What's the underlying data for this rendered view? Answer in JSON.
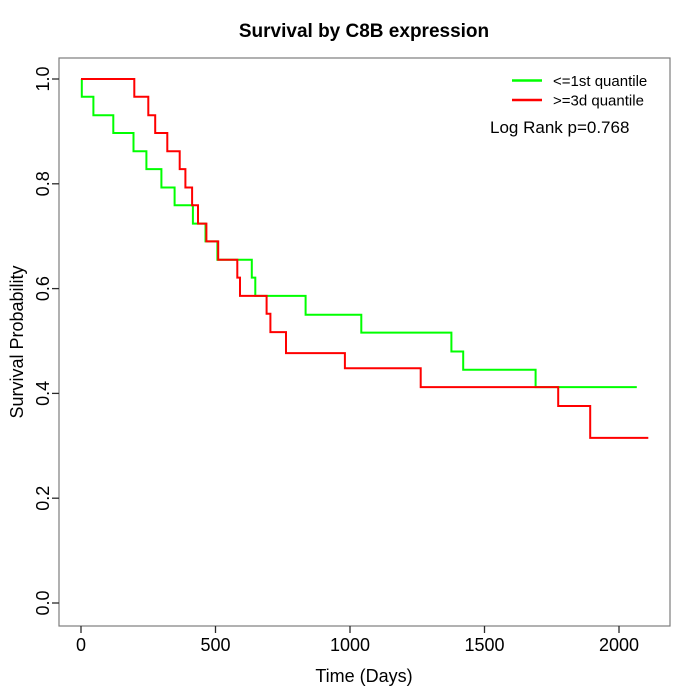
{
  "figure": {
    "title": "Survival by C8B expression",
    "xlabel": "Time (Days)",
    "ylabel": "Survival Probability",
    "annotation": "Log Rank p=0.768"
  },
  "legend": {
    "position": "top-right",
    "items": [
      {
        "label": "<=1st quantile",
        "color": "#00ff00"
      },
      {
        "label": ">=3d quantile",
        "color": "#ff0000"
      }
    ]
  },
  "colors": {
    "background": "#ffffff",
    "axis_box": "#7d7d7d",
    "tick": "#2a2a2a",
    "text": "#000000",
    "green_curve": "#00ff00",
    "red_curve": "#ff0000"
  },
  "chart_data": {
    "type": "line",
    "subtype": "kaplan-meier-step",
    "title": "Survival by C8B expression",
    "xlabel": "Time (Days)",
    "ylabel": "Survival Probability",
    "xticks": [
      0,
      500,
      1000,
      1500,
      2000
    ],
    "yticks": [
      0.0,
      0.2,
      0.4,
      0.6,
      0.8,
      1.0
    ],
    "xlim": [
      -82,
      2190
    ],
    "ylim": [
      -0.046,
      1.041
    ],
    "grid": false,
    "legend_position": "top-right",
    "annotations": [
      "Log Rank p=0.768"
    ],
    "series": [
      {
        "name": "<=1st quantile",
        "color": "#00ff00",
        "points": [
          [
            0,
            1.0
          ],
          [
            3,
            0.966
          ],
          [
            46,
            0.931
          ],
          [
            120,
            0.897
          ],
          [
            195,
            0.862
          ],
          [
            243,
            0.828
          ],
          [
            299,
            0.793
          ],
          [
            348,
            0.759
          ],
          [
            416,
            0.724
          ],
          [
            463,
            0.69
          ],
          [
            507,
            0.655
          ],
          [
            635,
            0.621
          ],
          [
            648,
            0.586
          ],
          [
            835,
            0.55
          ],
          [
            1042,
            0.516
          ],
          [
            1377,
            0.48
          ],
          [
            1421,
            0.445
          ],
          [
            1690,
            0.412
          ],
          [
            2066,
            0.412
          ]
        ]
      },
      {
        "name": ">=3d quantile",
        "color": "#ff0000",
        "points": [
          [
            0,
            1.0
          ],
          [
            198,
            0.966
          ],
          [
            250,
            0.931
          ],
          [
            276,
            0.897
          ],
          [
            321,
            0.862
          ],
          [
            367,
            0.828
          ],
          [
            388,
            0.793
          ],
          [
            413,
            0.759
          ],
          [
            435,
            0.724
          ],
          [
            466,
            0.69
          ],
          [
            510,
            0.655
          ],
          [
            581,
            0.621
          ],
          [
            591,
            0.586
          ],
          [
            690,
            0.552
          ],
          [
            704,
            0.517
          ],
          [
            762,
            0.477
          ],
          [
            981,
            0.448
          ],
          [
            1263,
            0.412
          ],
          [
            1774,
            0.376
          ],
          [
            1893,
            0.315
          ],
          [
            2109,
            0.315
          ]
        ]
      }
    ]
  }
}
